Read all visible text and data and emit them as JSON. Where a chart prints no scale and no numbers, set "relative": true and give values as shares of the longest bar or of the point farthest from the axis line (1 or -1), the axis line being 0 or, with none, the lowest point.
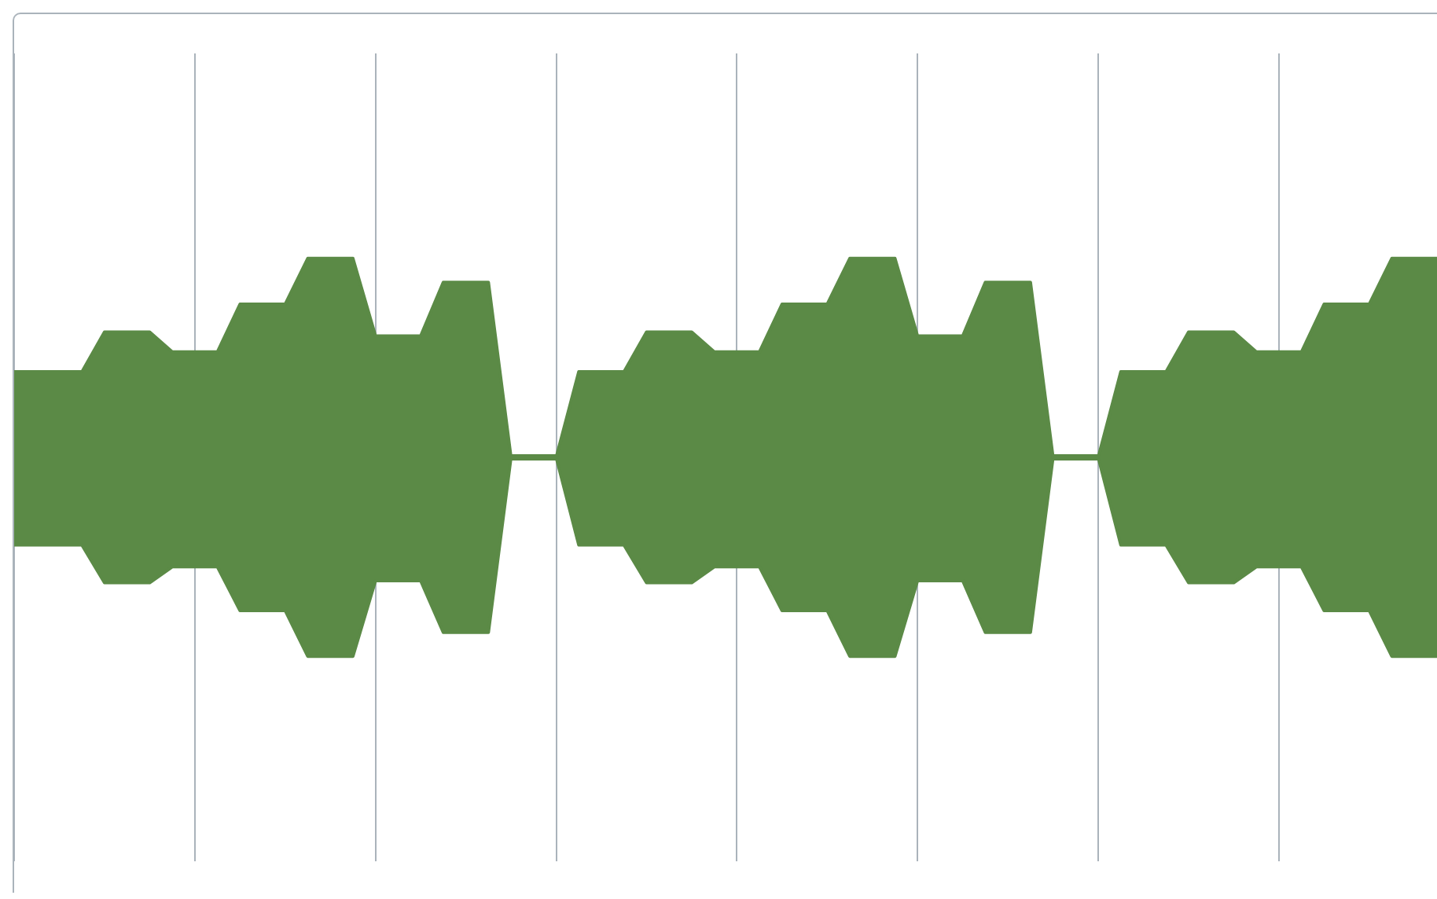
{
  "chart_data": {
    "type": "area",
    "relative": true,
    "grid": "x",
    "tick_labels": false,
    "legend": false,
    "ref_lines": [
      {
        "axis": "y",
        "value": 0,
        "color": "#5b8a46"
      }
    ],
    "categories": [
      null,
      null,
      null,
      null,
      null,
      null,
      null,
      null,
      null,
      null,
      null,
      null,
      null,
      null,
      null,
      null,
      null,
      null,
      null,
      null,
      null,
      null,
      null,
      null,
      null,
      null,
      null,
      null,
      null,
      null,
      null,
      null,
      null,
      null,
      null,
      null,
      null,
      null,
      null,
      null,
      null,
      null,
      null,
      null,
      null,
      null,
      null,
      null,
      null,
      null,
      null,
      null,
      null,
      null,
      null,
      null,
      null,
      null,
      null,
      null,
      null,
      null,
      null,
      null
    ],
    "series": [
      {
        "color": "#5b8a46",
        "values": [
          0.43,
          0.43,
          0.43,
          0.43,
          0.63,
          0.63,
          0.63,
          0.53,
          0.53,
          0.53,
          0.77,
          0.77,
          0.77,
          1,
          1,
          1,
          0.61,
          0.61,
          0.61,
          0.88,
          0.88,
          0.88,
          0,
          0,
          0,
          0.43,
          0.43,
          0.43,
          0.63,
          0.63,
          0.63,
          0.53,
          0.53,
          0.53,
          0.77,
          0.77,
          0.77,
          1,
          1,
          1,
          0.61,
          0.61,
          0.61,
          0.88,
          0.88,
          0.88,
          0,
          0,
          0,
          0.43,
          0.43,
          0.43,
          0.63,
          0.63,
          0.63,
          0.53,
          0.53,
          0.53,
          0.77,
          0.77,
          0.77,
          1,
          1,
          1
        ]
      },
      {
        "color": "#5b8a46",
        "values": [
          -0.44,
          -0.44,
          -0.44,
          -0.44,
          -0.63,
          -0.63,
          -0.63,
          -0.55,
          -0.55,
          -0.55,
          -0.77,
          -0.77,
          -0.77,
          -1,
          -1,
          -1,
          -0.62,
          -0.62,
          -0.62,
          -0.88,
          -0.88,
          -0.88,
          0,
          0,
          0,
          -0.44,
          -0.44,
          -0.44,
          -0.63,
          -0.63,
          -0.63,
          -0.55,
          -0.55,
          -0.55,
          -0.77,
          -0.77,
          -0.77,
          -1,
          -1,
          -1,
          -0.62,
          -0.62,
          -0.62,
          -0.88,
          -0.88,
          -0.88,
          0,
          0,
          0,
          -0.44,
          -0.44,
          -0.44,
          -0.63,
          -0.63,
          -0.63,
          -0.55,
          -0.55,
          -0.55,
          -0.77,
          -0.77,
          -0.77,
          -1,
          -1,
          -1
        ]
      }
    ]
  }
}
